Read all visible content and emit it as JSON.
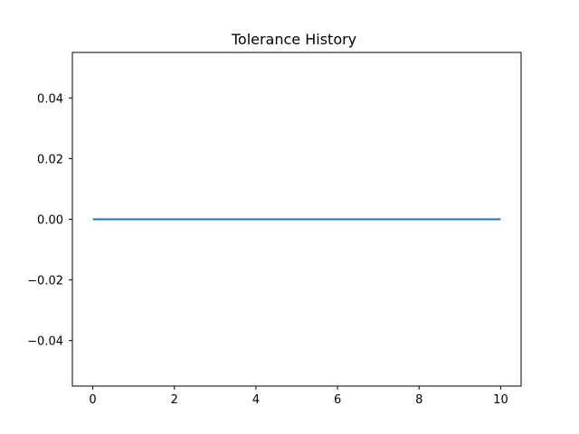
{
  "chart_data": {
    "type": "line",
    "title": "Tolerance History",
    "xlabel": "",
    "ylabel": "",
    "xlim": [
      -0.5,
      10.5
    ],
    "ylim": [
      -0.055,
      0.055
    ],
    "x_ticks": [
      0,
      2,
      4,
      6,
      8,
      10
    ],
    "x_tick_labels": [
      "0",
      "2",
      "4",
      "6",
      "8",
      "10"
    ],
    "y_ticks": [
      0.04,
      0.02,
      0.0,
      -0.02,
      -0.04
    ],
    "y_tick_labels": [
      "0.04",
      "0.02",
      "0.00",
      "−0.02",
      "−0.04"
    ],
    "grid": false,
    "series": [
      {
        "color": "#1f77b4",
        "x": [
          0,
          1,
          2,
          3,
          4,
          5,
          6,
          7,
          8,
          9,
          10
        ],
        "y": [
          0,
          0,
          0,
          0,
          0,
          0,
          0,
          0,
          0,
          0,
          0
        ]
      }
    ]
  }
}
